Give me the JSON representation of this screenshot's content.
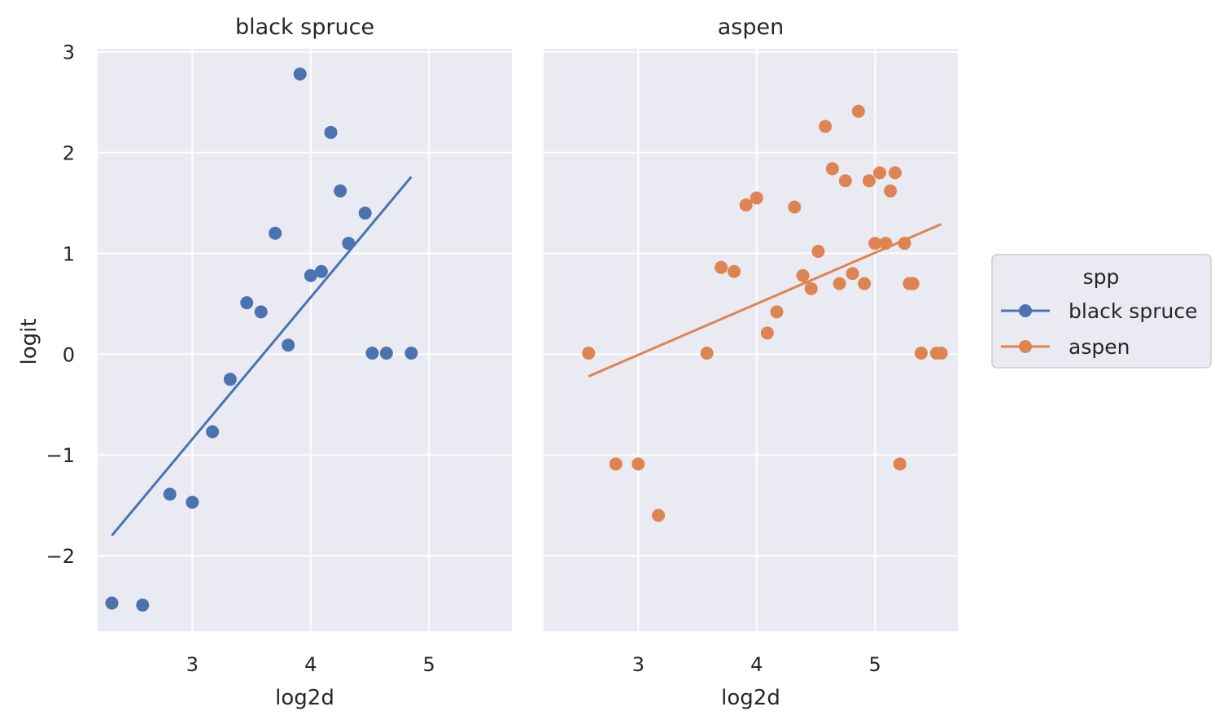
{
  "chart_data": {
    "type": "scatter",
    "xlabel": "log2d",
    "ylabel": "logit",
    "xlim": [
      2.2,
      5.7
    ],
    "ylim": [
      -2.75,
      3.03
    ],
    "xticks": [
      3,
      4,
      5
    ],
    "yticks": [
      -2,
      -1,
      0,
      1,
      2,
      3
    ],
    "xtick_labels": [
      "3",
      "4",
      "5"
    ],
    "ytick_labels": [
      "−2",
      "−1",
      "0",
      "1",
      "2",
      "3"
    ],
    "grid": true,
    "legend": {
      "title": "spp",
      "placement": "right",
      "entries": [
        "black spruce",
        "aspen"
      ]
    },
    "facets": [
      {
        "title": "black spruce",
        "color": "#4c72b0",
        "points": [
          [
            2.32,
            -2.47
          ],
          [
            2.58,
            -2.49
          ],
          [
            2.81,
            -1.39
          ],
          [
            3.0,
            -1.47
          ],
          [
            3.17,
            -0.77
          ],
          [
            3.32,
            -0.25
          ],
          [
            3.46,
            0.51
          ],
          [
            3.58,
            0.42
          ],
          [
            3.7,
            1.2
          ],
          [
            3.81,
            0.09
          ],
          [
            3.91,
            2.78
          ],
          [
            4.0,
            0.78
          ],
          [
            4.09,
            0.82
          ],
          [
            4.17,
            2.2
          ],
          [
            4.25,
            1.62
          ],
          [
            4.32,
            1.1
          ],
          [
            4.46,
            1.4
          ],
          [
            4.52,
            0.01
          ],
          [
            4.64,
            0.01
          ],
          [
            4.85,
            0.01
          ]
        ],
        "fit": [
          [
            2.32,
            -1.8
          ],
          [
            4.85,
            1.76
          ]
        ]
      },
      {
        "title": "aspen",
        "color": "#dd8452",
        "points": [
          [
            2.58,
            0.01
          ],
          [
            2.81,
            -1.09
          ],
          [
            3.0,
            -1.09
          ],
          [
            3.17,
            -1.6
          ],
          [
            3.58,
            0.01
          ],
          [
            3.7,
            0.86
          ],
          [
            3.81,
            0.82
          ],
          [
            3.91,
            1.48
          ],
          [
            4.0,
            1.55
          ],
          [
            4.09,
            0.21
          ],
          [
            4.17,
            0.42
          ],
          [
            4.32,
            1.46
          ],
          [
            4.39,
            0.78
          ],
          [
            4.46,
            0.65
          ],
          [
            4.52,
            1.02
          ],
          [
            4.58,
            2.26
          ],
          [
            4.64,
            1.84
          ],
          [
            4.7,
            0.7
          ],
          [
            4.75,
            1.72
          ],
          [
            4.81,
            0.8
          ],
          [
            4.86,
            2.41
          ],
          [
            4.91,
            0.7
          ],
          [
            4.95,
            1.72
          ],
          [
            5.0,
            1.1
          ],
          [
            5.04,
            1.8
          ],
          [
            5.09,
            1.1
          ],
          [
            5.13,
            1.62
          ],
          [
            5.17,
            1.8
          ],
          [
            5.21,
            -1.09
          ],
          [
            5.25,
            1.1
          ],
          [
            5.29,
            0.7
          ],
          [
            5.32,
            0.7
          ],
          [
            5.39,
            0.01
          ],
          [
            5.52,
            0.01
          ],
          [
            5.56,
            0.01
          ]
        ],
        "fit": [
          [
            2.58,
            -0.22
          ],
          [
            5.56,
            1.29
          ]
        ]
      }
    ]
  }
}
